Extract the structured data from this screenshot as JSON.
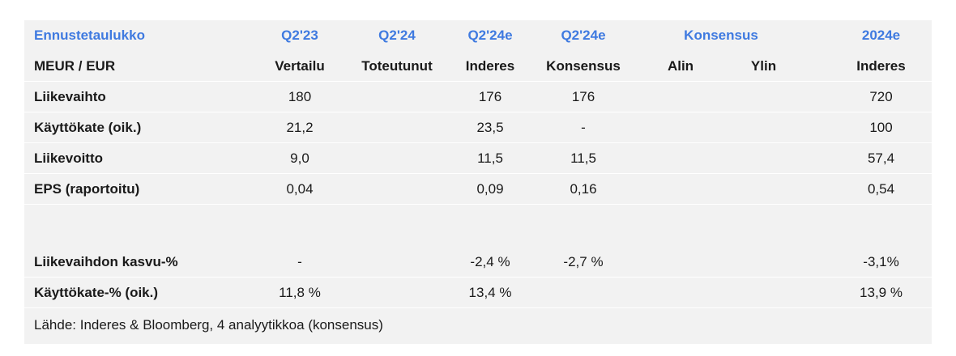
{
  "header": {
    "title": "Ennustetaulukko",
    "col1_top": "Q2'23",
    "col2_top": "Q2'24",
    "col3_top": "Q2'24e",
    "col4_top": "Q2'24e",
    "consensus_top": "Konsensus",
    "col7_top": "2024e",
    "unit": "MEUR / EUR",
    "col1_sub": "Vertailu",
    "col2_sub": "Toteutunut",
    "col3_sub": "Inderes",
    "col4_sub": "Konsensus",
    "col5_sub": "Alin",
    "col6_sub": "Ylin",
    "col7_sub": "Inderes"
  },
  "rows": [
    {
      "label": "Liikevaihto",
      "v1": "180",
      "v2": "",
      "v3": "176",
      "v4": "176",
      "v5": "",
      "v6": "",
      "v7": "720"
    },
    {
      "label": "Käyttökate (oik.)",
      "v1": "21,2",
      "v2": "",
      "v3": "23,5",
      "v4": "-",
      "v5": "",
      "v6": "",
      "v7": "100"
    },
    {
      "label": "Liikevoitto",
      "v1": "9,0",
      "v2": "",
      "v3": "11,5",
      "v4": "11,5",
      "v5": "",
      "v6": "",
      "v7": "57,4"
    },
    {
      "label": "EPS (raportoitu)",
      "v1": "0,04",
      "v2": "",
      "v3": "0,09",
      "v4": "0,16",
      "v5": "",
      "v6": "",
      "v7": "0,54"
    }
  ],
  "rows2": [
    {
      "label": "Liikevaihdon kasvu-%",
      "v1": "-",
      "v2": "",
      "v3": "-2,4 %",
      "v4": "-2,7 %",
      "v5": "",
      "v6": "",
      "v7": "-3,1%"
    },
    {
      "label": "Käyttökate-% (oik.)",
      "v1": "11,8 %",
      "v2": "",
      "v3": "13,4 %",
      "v4": "",
      "v5": "",
      "v6": "",
      "v7": "13,9 %"
    }
  ],
  "source": "Lähde: Inderes & Bloomberg, 4 analyytikkoa (konsensus)",
  "colors": {
    "accent": "#3f7ae0",
    "panel": "#f2f2f2"
  }
}
